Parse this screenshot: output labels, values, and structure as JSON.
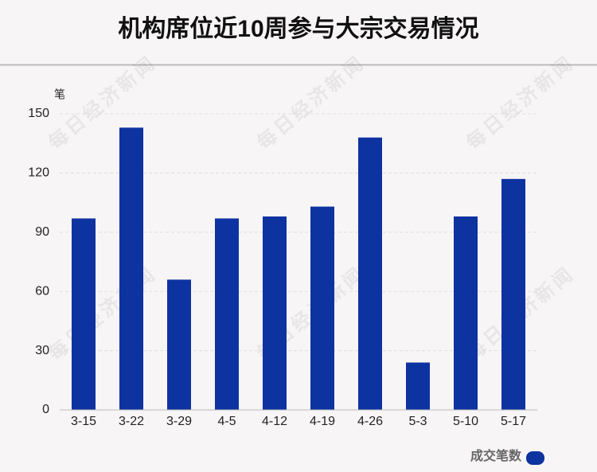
{
  "chart_data": {
    "type": "bar",
    "title": "机构席位近10周参与大宗交易情况",
    "y_unit": "笔",
    "watermark": "每日经济新闻",
    "categories": [
      "3-15",
      "3-22",
      "3-29",
      "4-5",
      "4-12",
      "4-19",
      "4-26",
      "5-3",
      "5-10",
      "5-17"
    ],
    "series": [
      {
        "name": "成交笔数",
        "color": "#0d33a0",
        "values": [
          97,
          143,
          66,
          97,
          98,
          103,
          138,
          24,
          98,
          117
        ]
      }
    ],
    "ylim": [
      0,
      150
    ],
    "yticks": [
      0,
      30,
      60,
      90,
      120,
      150
    ],
    "grid": true,
    "legend": "bottom-right"
  }
}
